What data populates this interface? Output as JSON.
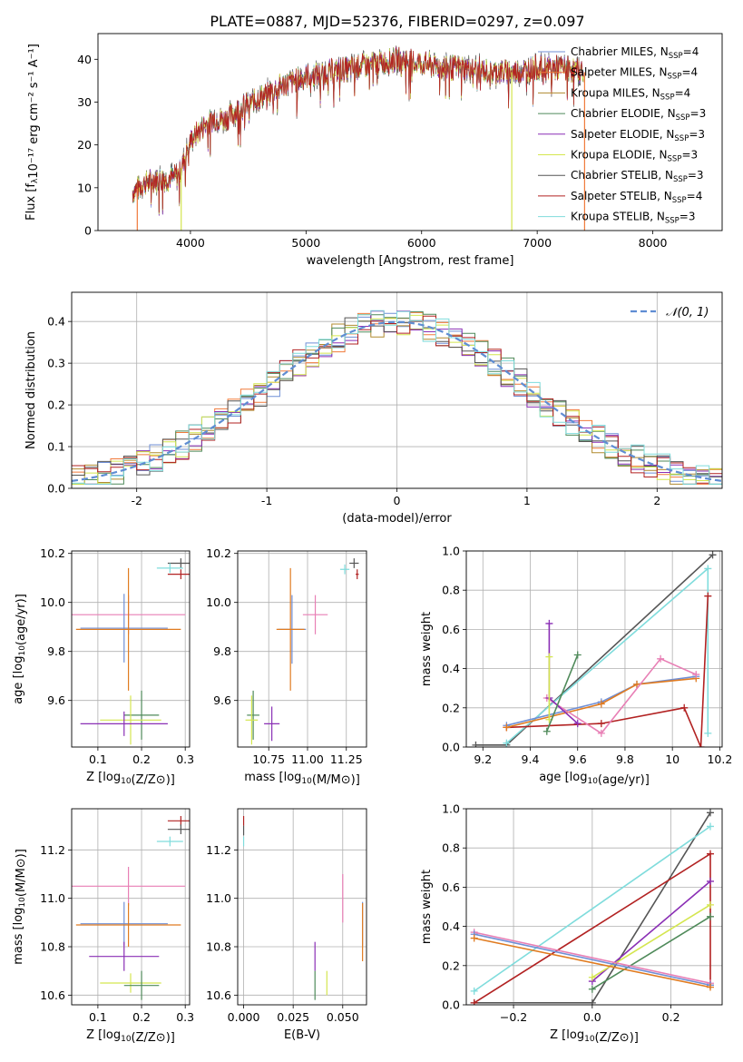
{
  "figure_title": "PLATE=0887, MJD=52376, FIBERID=0297, z=0.097",
  "colors": {
    "Chabrier MILES": "#6f8fd6",
    "Salpeter MILES": "#f07a3a",
    "Kroupa MILES": "#b08a2e",
    "Chabrier ELODIE": "#4f8a5a",
    "Salpeter ELODIE": "#8a2fb5",
    "Kroupa ELODIE": "#d4e64f",
    "Chabrier STELIB": "#555555",
    "Salpeter STELIB": "#b22222",
    "Kroupa STELIB": "#7fdcdc",
    "pink": "#e87fb5",
    "orange": "#e07b20",
    "normal_curve": "#5f8dd3",
    "grid": "#b0b0b0"
  },
  "chart_data": [
    {
      "type": "line",
      "title": "PLATE=0887, MJD=52376, FIBERID=0297, z=0.097",
      "xlabel": "wavelength [Angstrom, rest frame]",
      "ylabel": "Flux [fλ10⁻¹⁷ erg cm⁻² s⁻¹ A⁻¹]",
      "xlim": [
        3200,
        8600
      ],
      "ylim": [
        0,
        46
      ],
      "xticks": [
        4000,
        5000,
        6000,
        7000,
        8000
      ],
      "yticks": [
        0,
        10,
        20,
        30,
        40
      ],
      "grid": false,
      "legend": "upper-right",
      "continuum": {
        "x": [
          3500,
          3600,
          3700,
          3800,
          3900,
          4000,
          4100,
          4200,
          4300,
          4400,
          4600,
          4800,
          5000,
          5200,
          5400,
          5600,
          5800,
          6000,
          6200,
          6400,
          6600,
          6800,
          7000,
          7200,
          7400
        ],
        "y": [
          9,
          11,
          12,
          12,
          13,
          21,
          24,
          26,
          26,
          28,
          31,
          34,
          36,
          37,
          38,
          39,
          40,
          39,
          38,
          38,
          37,
          37,
          38,
          38,
          37
        ]
      },
      "legend_entries": [
        "Chabrier MILES, N_SSP=4",
        "Salpeter MILES, N_SSP=4",
        "Kroupa MILES, N_SSP=4",
        "Chabrier ELODIE, N_SSP=3",
        "Salpeter ELODIE, N_SSP=3",
        "Kroupa ELODIE, N_SSP=3",
        "Chabrier STELIB, N_SSP=3",
        "Salpeter STELIB, N_SSP=4",
        "Kroupa STELIB, N_SSP=3"
      ],
      "vertical_spikes": [
        {
          "x": 3540,
          "series": "Salpeter MILES"
        },
        {
          "x": 3920,
          "series": "Kroupa ELODIE"
        },
        {
          "x": 6780,
          "series": "Kroupa ELODIE"
        },
        {
          "x": 7410,
          "series": "Salpeter MILES"
        }
      ]
    },
    {
      "type": "line",
      "xlabel": "(data-model)/error",
      "ylabel": "Normed distribution",
      "xlim": [
        -2.5,
        2.5
      ],
      "ylim": [
        0,
        0.47
      ],
      "xticks": [
        -2,
        -1,
        0,
        1,
        2
      ],
      "yticks": [
        0.0,
        0.1,
        0.2,
        0.3,
        0.4
      ],
      "grid": true,
      "legend": "upper-right",
      "legend_entries": [
        "N(0,1)"
      ],
      "bin_width": 0.1,
      "histogram_series_count": 9
    },
    {
      "type": "scatter",
      "xlabel": "Z [log10(Z/Z⊙)]",
      "ylabel": "age  [log10(age/yr)]",
      "xlim": [
        0.04,
        0.31
      ],
      "ylim": [
        9.41,
        10.21
      ],
      "xticks": [
        0.1,
        0.2,
        0.3
      ],
      "yticks": [
        9.6,
        9.8,
        10.0,
        10.2
      ],
      "grid": true,
      "points": [
        {
          "x": 0.29,
          "y": 10.16,
          "xerr": 0.03,
          "yerr": 0.02,
          "series": "Chabrier STELIB"
        },
        {
          "x": 0.265,
          "y": 10.14,
          "xerr": 0.03,
          "yerr": 0.02,
          "series": "Kroupa STELIB"
        },
        {
          "x": 0.29,
          "y": 10.115,
          "xerr": 0.03,
          "yerr": 0.02,
          "series": "Salpeter STELIB"
        },
        {
          "x": 0.17,
          "y": 9.95,
          "xerr": 0.13,
          "yerr": 0.08,
          "series": "pink"
        },
        {
          "x": 0.16,
          "y": 9.895,
          "xerr": 0.1,
          "yerr": 0.14,
          "series": "Chabrier MILES"
        },
        {
          "x": 0.17,
          "y": 9.89,
          "xerr": 0.12,
          "yerr": 0.25,
          "series": "orange"
        },
        {
          "x": 0.2,
          "y": 9.54,
          "xerr": 0.04,
          "yerr": 0.1,
          "series": "Chabrier ELODIE"
        },
        {
          "x": 0.175,
          "y": 9.52,
          "xerr": 0.07,
          "yerr": 0.1,
          "series": "Kroupa ELODIE"
        },
        {
          "x": 0.16,
          "y": 9.505,
          "xerr": 0.1,
          "yerr": 0.05,
          "series": "Salpeter ELODIE"
        }
      ]
    },
    {
      "type": "scatter",
      "xlabel": "mass [log10(M/M⊙)]",
      "ylabel": "",
      "xlim": [
        10.55,
        11.38
      ],
      "ylim": [
        9.41,
        10.21
      ],
      "xticks": [
        10.75,
        11.0,
        11.25
      ],
      "xtick_labels": [
        "10.75",
        "11.00",
        "11.25"
      ],
      "yticks": [
        9.6,
        9.8,
        10.0,
        10.2
      ],
      "grid": true,
      "points": [
        {
          "x": 11.3,
          "y": 10.16,
          "xerr": 0.03,
          "yerr": 0.02,
          "series": "Chabrier STELIB"
        },
        {
          "x": 11.24,
          "y": 10.135,
          "xerr": 0.03,
          "yerr": 0.02,
          "series": "Kroupa STELIB"
        },
        {
          "x": 11.32,
          "y": 10.115,
          "xerr": 0.01,
          "yerr": 0.02,
          "series": "Salpeter STELIB"
        },
        {
          "x": 11.05,
          "y": 9.95,
          "xerr": 0.08,
          "yerr": 0.08,
          "series": "pink"
        },
        {
          "x": 10.9,
          "y": 9.89,
          "xerr": 0.09,
          "yerr": 0.14,
          "series": "Chabrier MILES"
        },
        {
          "x": 10.89,
          "y": 9.89,
          "xerr": 0.09,
          "yerr": 0.25,
          "series": "orange"
        },
        {
          "x": 10.65,
          "y": 9.54,
          "xerr": 0.04,
          "yerr": 0.1,
          "series": "Chabrier ELODIE"
        },
        {
          "x": 10.64,
          "y": 9.52,
          "xerr": 0.04,
          "yerr": 0.1,
          "series": "Kroupa ELODIE"
        },
        {
          "x": 10.77,
          "y": 9.505,
          "xerr": 0.05,
          "yerr": 0.07,
          "series": "Salpeter ELODIE"
        }
      ]
    },
    {
      "type": "line",
      "xlabel": "age  [log10(age/yr)]",
      "ylabel": "mass weight",
      "xlim": [
        9.13,
        10.21
      ],
      "ylim": [
        0.0,
        1.0
      ],
      "xticks": [
        9.2,
        9.4,
        9.6,
        9.8,
        10.0,
        10.2
      ],
      "yticks": [
        0.0,
        0.2,
        0.4,
        0.6,
        0.8,
        1.0
      ],
      "grid": true,
      "series": [
        {
          "series": "Chabrier STELIB",
          "points": [
            [
              9.17,
              0.01
            ],
            [
              9.3,
              0.01
            ],
            [
              10.17,
              0.98
            ]
          ]
        },
        {
          "series": "Kroupa STELIB",
          "points": [
            [
              9.3,
              0.02
            ],
            [
              10.15,
              0.91
            ],
            [
              10.15,
              0.07
            ]
          ]
        },
        {
          "series": "Salpeter STELIB",
          "points": [
            [
              9.3,
              0.1
            ],
            [
              9.7,
              0.12
            ],
            [
              10.05,
              0.2
            ],
            [
              10.12,
              0.0
            ],
            [
              10.15,
              0.77
            ]
          ]
        },
        {
          "series": "Chabrier MILES",
          "points": [
            [
              9.3,
              0.11
            ],
            [
              9.7,
              0.23
            ],
            [
              9.85,
              0.32
            ],
            [
              10.1,
              0.36
            ]
          ]
        },
        {
          "series": "orange",
          "points": [
            [
              9.3,
              0.1
            ],
            [
              9.7,
              0.22
            ],
            [
              9.85,
              0.32
            ],
            [
              10.1,
              0.35
            ]
          ]
        },
        {
          "series": "pink",
          "points": [
            [
              9.47,
              0.25
            ],
            [
              9.7,
              0.07
            ],
            [
              9.95,
              0.45
            ],
            [
              10.1,
              0.37
            ]
          ]
        },
        {
          "series": "Salpeter ELODIE",
          "points": [
            [
              9.48,
              0.63
            ],
            [
              9.48,
              0.25
            ],
            [
              9.6,
              0.12
            ]
          ]
        },
        {
          "series": "Kroupa ELODIE",
          "points": [
            [
              9.48,
              0.46
            ],
            [
              9.48,
              0.14
            ]
          ]
        },
        {
          "series": "Chabrier ELODIE",
          "points": [
            [
              9.47,
              0.08
            ],
            [
              9.6,
              0.47
            ]
          ]
        }
      ]
    },
    {
      "type": "scatter",
      "xlabel": "Z [log10(Z/Z⊙)]",
      "ylabel": "mass [log10(M/M⊙)]",
      "xlim": [
        0.04,
        0.31
      ],
      "ylim": [
        10.56,
        11.37
      ],
      "xticks": [
        0.1,
        0.2,
        0.3
      ],
      "yticks": [
        10.6,
        10.8,
        11.0,
        11.2
      ],
      "grid": true,
      "points": [
        {
          "x": 0.29,
          "y": 11.32,
          "xerr": 0.03,
          "yerr": 0.02,
          "series": "Salpeter STELIB"
        },
        {
          "x": 0.29,
          "y": 11.285,
          "xerr": 0.03,
          "yerr": 0.02,
          "series": "Chabrier STELIB"
        },
        {
          "x": 0.265,
          "y": 11.235,
          "xerr": 0.03,
          "yerr": 0.02,
          "series": "Kroupa STELIB"
        },
        {
          "x": 0.17,
          "y": 11.05,
          "xerr": 0.13,
          "yerr": 0.08,
          "series": "pink"
        },
        {
          "x": 0.16,
          "y": 10.895,
          "xerr": 0.1,
          "yerr": 0.09,
          "series": "Chabrier MILES"
        },
        {
          "x": 0.17,
          "y": 10.89,
          "xerr": 0.12,
          "yerr": 0.09,
          "series": "orange"
        },
        {
          "x": 0.16,
          "y": 10.76,
          "xerr": 0.08,
          "yerr": 0.06,
          "series": "Salpeter ELODIE"
        },
        {
          "x": 0.175,
          "y": 10.65,
          "xerr": 0.07,
          "yerr": 0.04,
          "series": "Kroupa ELODIE"
        },
        {
          "x": 0.2,
          "y": 10.64,
          "xerr": 0.04,
          "yerr": 0.06,
          "series": "Chabrier ELODIE"
        }
      ]
    },
    {
      "type": "scatter",
      "xlabel": "E(B-V)",
      "ylabel": "",
      "xlim": [
        -0.003,
        0.062
      ],
      "ylim": [
        10.56,
        11.37
      ],
      "xticks": [
        0.0,
        0.025,
        0.05
      ],
      "xtick_labels": [
        "0.000",
        "0.025",
        "0.050"
      ],
      "yticks": [
        10.6,
        10.8,
        11.0,
        11.2
      ],
      "grid": true,
      "points": [
        {
          "x": 0.0,
          "y": 11.32,
          "yerr": 0.02,
          "series": "Salpeter STELIB"
        },
        {
          "x": 0.0,
          "y": 11.28,
          "yerr": 0.02,
          "series": "Chabrier STELIB"
        },
        {
          "x": 0.0,
          "y": 11.235,
          "yerr": 0.02,
          "series": "Kroupa STELIB"
        },
        {
          "x": 0.05,
          "y": 11.0,
          "yerr": 0.1,
          "series": "pink"
        },
        {
          "x": 0.06,
          "y": 10.895,
          "yerr": 0.09,
          "series": "Chabrier MILES"
        },
        {
          "x": 0.06,
          "y": 10.86,
          "yerr": 0.12,
          "series": "orange"
        },
        {
          "x": 0.036,
          "y": 10.76,
          "yerr": 0.06,
          "series": "Salpeter ELODIE"
        },
        {
          "x": 0.042,
          "y": 10.65,
          "yerr": 0.05,
          "series": "Kroupa ELODIE"
        },
        {
          "x": 0.036,
          "y": 10.64,
          "yerr": 0.06,
          "series": "Chabrier ELODIE"
        }
      ]
    },
    {
      "type": "line",
      "xlabel": "Z [log10(Z/Z⊙)]",
      "ylabel": "mass weight",
      "xlim": [
        -0.32,
        0.33
      ],
      "ylim": [
        0.0,
        1.0
      ],
      "xticks": [
        -0.2,
        0.0,
        0.2
      ],
      "xtick_labels": [
        "−0.2",
        "0.0",
        "0.2"
      ],
      "yticks": [
        0.0,
        0.2,
        0.4,
        0.6,
        0.8,
        1.0
      ],
      "grid": true,
      "series": [
        {
          "series": "Chabrier STELIB",
          "points": [
            [
              -0.3,
              0.01
            ],
            [
              0.0,
              0.01
            ],
            [
              0.3,
              0.98
            ]
          ]
        },
        {
          "series": "Kroupa STELIB",
          "points": [
            [
              -0.3,
              0.07
            ],
            [
              0.3,
              0.91
            ]
          ]
        },
        {
          "series": "Salpeter STELIB",
          "points": [
            [
              -0.3,
              0.01
            ],
            [
              0.3,
              0.77
            ],
            [
              0.3,
              0.1
            ]
          ]
        },
        {
          "series": "Salpeter ELODIE",
          "points": [
            [
              0.0,
              0.12
            ],
            [
              0.3,
              0.63
            ]
          ]
        },
        {
          "series": "Kroupa ELODIE",
          "points": [
            [
              0.0,
              0.14
            ],
            [
              0.3,
              0.51
            ]
          ]
        },
        {
          "series": "Chabrier ELODIE",
          "points": [
            [
              0.0,
              0.08
            ],
            [
              0.3,
              0.45
            ]
          ]
        },
        {
          "series": "pink",
          "points": [
            [
              -0.3,
              0.37
            ],
            [
              0.3,
              0.11
            ]
          ]
        },
        {
          "series": "Chabrier MILES",
          "points": [
            [
              -0.3,
              0.36
            ],
            [
              0.3,
              0.1
            ]
          ]
        },
        {
          "series": "orange",
          "points": [
            [
              -0.3,
              0.34
            ],
            [
              0.3,
              0.09
            ]
          ]
        }
      ]
    }
  ]
}
